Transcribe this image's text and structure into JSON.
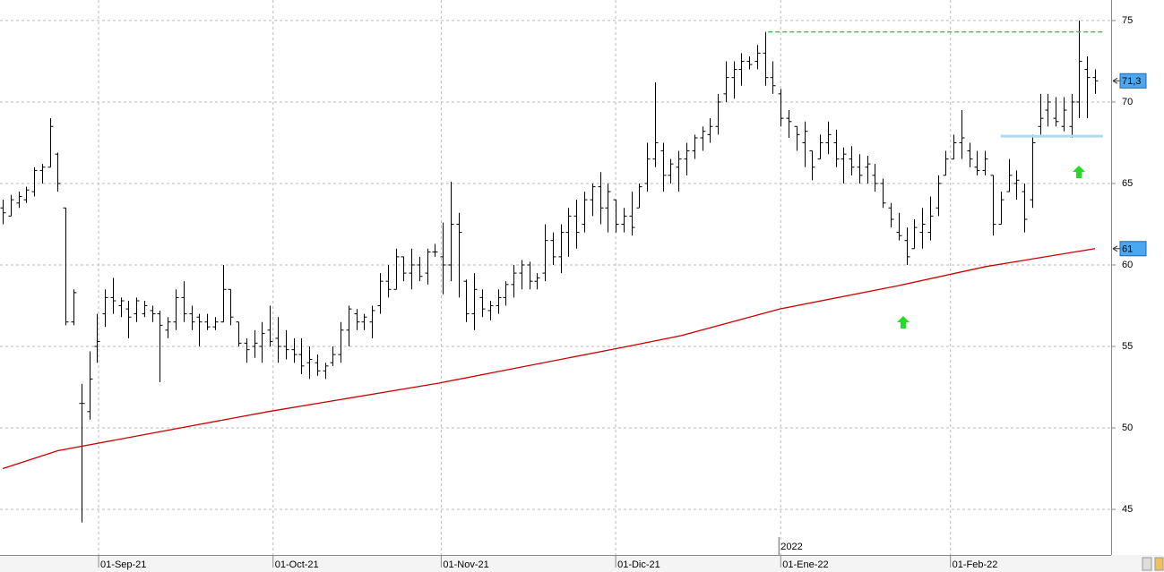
{
  "chart_data": {
    "type": "ohlc",
    "bar_color": "#000000",
    "ohlc": [
      [
        63.5,
        64.0,
        62.5,
        63.2
      ],
      [
        63.0,
        64.3,
        63.0,
        64.0
      ],
      [
        63.8,
        64.5,
        63.5,
        64.2
      ],
      [
        64.0,
        64.8,
        63.8,
        64.6
      ],
      [
        64.5,
        66.0,
        64.2,
        65.8
      ],
      [
        65.8,
        66.2,
        65.0,
        66.0
      ],
      [
        66.0,
        69.0,
        66.0,
        68.5
      ],
      [
        66.8,
        66.9,
        64.5,
        65.0
      ],
      [
        63.5,
        63.5,
        56.3,
        56.5
      ],
      [
        56.5,
        58.5,
        56.3,
        58.3
      ],
      [
        51.5,
        52.7,
        44.2,
        51.5
      ],
      [
        51.0,
        54.7,
        50.5,
        53.0
      ],
      [
        55.0,
        57.0,
        54.0,
        55.3
      ],
      [
        57.0,
        58.5,
        56.2,
        58.0
      ],
      [
        58.0,
        59.2,
        57.0,
        57.8
      ],
      [
        57.5,
        58.0,
        56.8,
        57.8
      ],
      [
        57.3,
        57.8,
        55.5,
        56.8
      ],
      [
        57.0,
        58.0,
        56.5,
        57.8
      ],
      [
        57.0,
        57.8,
        56.8,
        57.5
      ],
      [
        57.2,
        57.5,
        56.5,
        57.0
      ],
      [
        57.0,
        57.2,
        52.8,
        56.3
      ],
      [
        56.0,
        56.8,
        55.5,
        56.5
      ],
      [
        56.5,
        58.5,
        56.0,
        58.0
      ],
      [
        58.0,
        59.0,
        56.5,
        57.0
      ],
      [
        57.0,
        57.5,
        56.0,
        56.5
      ],
      [
        56.8,
        57.0,
        55.0,
        56.5
      ],
      [
        56.5,
        57.0,
        56.0,
        56.2
      ],
      [
        56.2,
        56.8,
        56.0,
        56.5
      ],
      [
        56.5,
        60.0,
        56.5,
        58.5
      ],
      [
        58.5,
        58.5,
        56.3,
        56.8
      ],
      [
        56.5,
        56.5,
        55.0,
        55.2
      ],
      [
        55.2,
        55.5,
        54.0,
        54.8
      ],
      [
        55.0,
        56.0,
        54.3,
        55.2
      ],
      [
        55.0,
        56.5,
        54.0,
        55.8
      ],
      [
        56.0,
        57.5,
        55.0,
        55.3
      ],
      [
        55.5,
        56.8,
        54.0,
        55.0
      ],
      [
        55.0,
        56.0,
        54.2,
        54.8
      ],
      [
        54.8,
        55.5,
        54.0,
        54.5
      ],
      [
        54.5,
        55.5,
        53.3,
        53.8
      ],
      [
        54.0,
        55.0,
        53.0,
        54.2
      ],
      [
        54.0,
        54.5,
        53.2,
        53.5
      ],
      [
        53.5,
        54.0,
        53.0,
        53.8
      ],
      [
        54.0,
        55.0,
        53.8,
        54.5
      ],
      [
        54.5,
        56.5,
        54.0,
        56.0
      ],
      [
        56.0,
        57.5,
        55.0,
        57.3
      ],
      [
        57.0,
        57.3,
        56.0,
        56.5
      ],
      [
        56.5,
        57.0,
        56.0,
        56.8
      ],
      [
        56.5,
        57.5,
        55.5,
        57.2
      ],
      [
        57.5,
        59.5,
        57.0,
        59.0
      ],
      [
        59.0,
        60.0,
        58.0,
        58.5
      ],
      [
        58.5,
        61.0,
        58.5,
        60.5
      ],
      [
        60.5,
        60.5,
        59.0,
        59.5
      ],
      [
        59.5,
        61.0,
        58.5,
        60.0
      ],
      [
        60.0,
        60.5,
        59.0,
        59.3
      ],
      [
        59.5,
        61.0,
        58.8,
        60.8
      ],
      [
        60.8,
        61.3,
        60.5,
        60.8
      ],
      [
        60.5,
        62.6,
        58.2,
        60.0
      ],
      [
        60.0,
        65.1,
        59.0,
        62.5
      ],
      [
        62.5,
        63.2,
        58.0,
        62.0
      ],
      [
        59.0,
        59.1,
        56.5,
        57.0
      ],
      [
        57.0,
        59.5,
        56.0,
        58.5
      ],
      [
        58.0,
        58.5,
        56.8,
        57.3
      ],
      [
        57.2,
        57.8,
        56.6,
        57.5
      ],
      [
        57.5,
        58.5,
        57.0,
        58.0
      ],
      [
        58.0,
        59.0,
        57.5,
        58.8
      ],
      [
        58.8,
        60.0,
        58.0,
        59.5
      ],
      [
        59.5,
        60.3,
        58.5,
        60.0
      ],
      [
        60.0,
        60.2,
        58.5,
        59.0
      ],
      [
        59.0,
        59.5,
        58.5,
        59.2
      ],
      [
        59.5,
        62.5,
        59.0,
        61.5
      ],
      [
        61.5,
        62.0,
        60.0,
        60.5
      ],
      [
        60.5,
        62.5,
        59.5,
        62.0
      ],
      [
        62.0,
        63.5,
        60.5,
        63.0
      ],
      [
        63.0,
        64.0,
        61.0,
        62.0
      ],
      [
        62.5,
        64.5,
        62.0,
        64.0
      ],
      [
        64.0,
        65.0,
        63.0,
        64.8
      ],
      [
        64.8,
        65.7,
        62.5,
        63.5
      ],
      [
        63.5,
        65.0,
        62.0,
        64.5
      ],
      [
        64.0,
        64.0,
        62.0,
        62.5
      ],
      [
        62.5,
        63.5,
        62.0,
        63.0
      ],
      [
        63.0,
        64.5,
        61.8,
        62.3
      ],
      [
        63.5,
        65.0,
        63.5,
        64.8
      ],
      [
        65.0,
        67.5,
        64.5,
        66.5
      ],
      [
        66.5,
        71.2,
        66.0,
        67.5
      ],
      [
        67.0,
        67.5,
        64.5,
        65.5
      ],
      [
        65.5,
        66.5,
        65.0,
        66.2
      ],
      [
        66.0,
        67.0,
        64.5,
        66.5
      ],
      [
        66.5,
        67.5,
        65.5,
        67.0
      ],
      [
        67.0,
        68.0,
        66.5,
        67.8
      ],
      [
        67.8,
        68.5,
        67.0,
        68.2
      ],
      [
        68.0,
        69.0,
        67.5,
        68.5
      ],
      [
        68.5,
        70.5,
        68.0,
        70.0
      ],
      [
        70.5,
        72.5,
        70.0,
        71.5
      ],
      [
        71.5,
        72.5,
        70.2,
        72.0
      ],
      [
        72.0,
        73.0,
        71.0,
        72.5
      ],
      [
        72.5,
        72.8,
        72.0,
        72.3
      ],
      [
        72.5,
        73.5,
        72.0,
        73.0
      ],
      [
        73.0,
        74.3,
        71.0,
        71.5
      ],
      [
        71.5,
        72.5,
        70.5,
        71.0
      ],
      [
        70.5,
        70.8,
        68.5,
        69.0
      ],
      [
        69.0,
        69.5,
        67.8,
        68.8
      ],
      [
        68.5,
        68.5,
        67.0,
        68.0
      ],
      [
        67.5,
        68.8,
        66.0,
        68.2
      ],
      [
        67.0,
        67.0,
        65.2,
        66.0
      ],
      [
        66.5,
        68.0,
        66.5,
        67.5
      ],
      [
        67.5,
        68.8,
        66.8,
        68.0
      ],
      [
        67.5,
        68.3,
        66.0,
        66.5
      ],
      [
        66.5,
        67.2,
        65.0,
        66.8
      ],
      [
        66.5,
        67.3,
        65.5,
        66.0
      ],
      [
        66.0,
        66.8,
        65.0,
        65.5
      ],
      [
        66.0,
        66.7,
        65.0,
        66.2
      ],
      [
        65.5,
        66.2,
        64.5,
        65.0
      ],
      [
        65.0,
        65.3,
        63.5,
        63.8
      ],
      [
        63.5,
        63.8,
        62.3,
        62.8
      ],
      [
        62.0,
        63.2,
        61.5,
        61.8
      ],
      [
        61.5,
        62.3,
        60.0,
        60.5
      ],
      [
        61.0,
        62.8,
        61.0,
        62.3
      ],
      [
        62.0,
        63.5,
        61.0,
        62.5
      ],
      [
        62.0,
        64.2,
        61.5,
        63.0
      ],
      [
        63.5,
        65.5,
        63.0,
        65.0
      ],
      [
        65.5,
        67.0,
        65.5,
        66.5
      ],
      [
        66.5,
        68.0,
        66.5,
        67.5
      ],
      [
        67.5,
        69.5,
        66.5,
        67.8
      ],
      [
        67.0,
        67.5,
        66.0,
        66.5
      ],
      [
        66.0,
        67.0,
        65.5,
        65.8
      ],
      [
        65.8,
        67.0,
        65.5,
        66.5
      ],
      [
        65.5,
        65.5,
        61.8,
        62.5
      ],
      [
        62.5,
        64.5,
        62.5,
        64.0
      ],
      [
        64.5,
        66.5,
        64.5,
        65.5
      ],
      [
        65.0,
        65.8,
        64.0,
        65.2
      ],
      [
        64.5,
        65.0,
        62.0,
        62.8
      ],
      [
        64.0,
        68.0,
        63.5,
        67.5
      ],
      [
        68.5,
        70.5,
        68.0,
        69.0
      ],
      [
        69.5,
        70.5,
        68.5,
        70.0
      ],
      [
        69.0,
        70.3,
        68.5,
        68.8
      ],
      [
        68.5,
        70.3,
        68.2,
        69.5
      ],
      [
        68.5,
        70.5,
        67.8,
        70.0
      ],
      [
        70.0,
        75.0,
        69.0,
        72.5
      ],
      [
        72.0,
        72.8,
        69.0,
        71.5
      ],
      [
        71.5,
        72.0,
        70.5,
        71.3
      ]
    ],
    "moving_average": {
      "color": "#cc0000",
      "x": [
        0,
        7,
        33.8,
        55.5,
        79.5,
        86.3,
        98.9,
        113.7,
        125.1,
        139
      ],
      "values": [
        47.5,
        48.6,
        51.0,
        52.75,
        55.0,
        55.66,
        57.3,
        58.7,
        59.9,
        61.0
      ]
    },
    "levels": [
      {
        "value": 74.3,
        "x": [
          97.4,
          140
        ],
        "color": "#22dd22",
        "dashed": true
      },
      {
        "value": 67.9,
        "x": [
          127,
          140
        ],
        "color": "#aaddee",
        "dashed": false
      }
    ],
    "price_markers": [
      {
        "value": 71.3,
        "label": "71,3"
      },
      {
        "value": 61,
        "label": "61"
      }
    ],
    "xlim": [
      -0.35,
      141.05
    ],
    "xticks": [
      {
        "value": 12.2,
        "label": "01-Sep-21"
      },
      {
        "value": 34.4,
        "label": "01-Oct-21"
      },
      {
        "value": 55.8,
        "label": "01-Nov-21"
      },
      {
        "value": 78.0,
        "label": "01-Dic-21"
      },
      {
        "value": 99.0,
        "label": "01-Ene-22"
      },
      {
        "value": 120.6,
        "label": "01-Feb-22"
      }
    ],
    "year_marker": {
      "value": 99.0,
      "label": "2022"
    },
    "ylim": [
      42.2,
      76.26
    ],
    "yticks": [
      45,
      50,
      55,
      60,
      65,
      70,
      75
    ],
    "grid": true
  }
}
